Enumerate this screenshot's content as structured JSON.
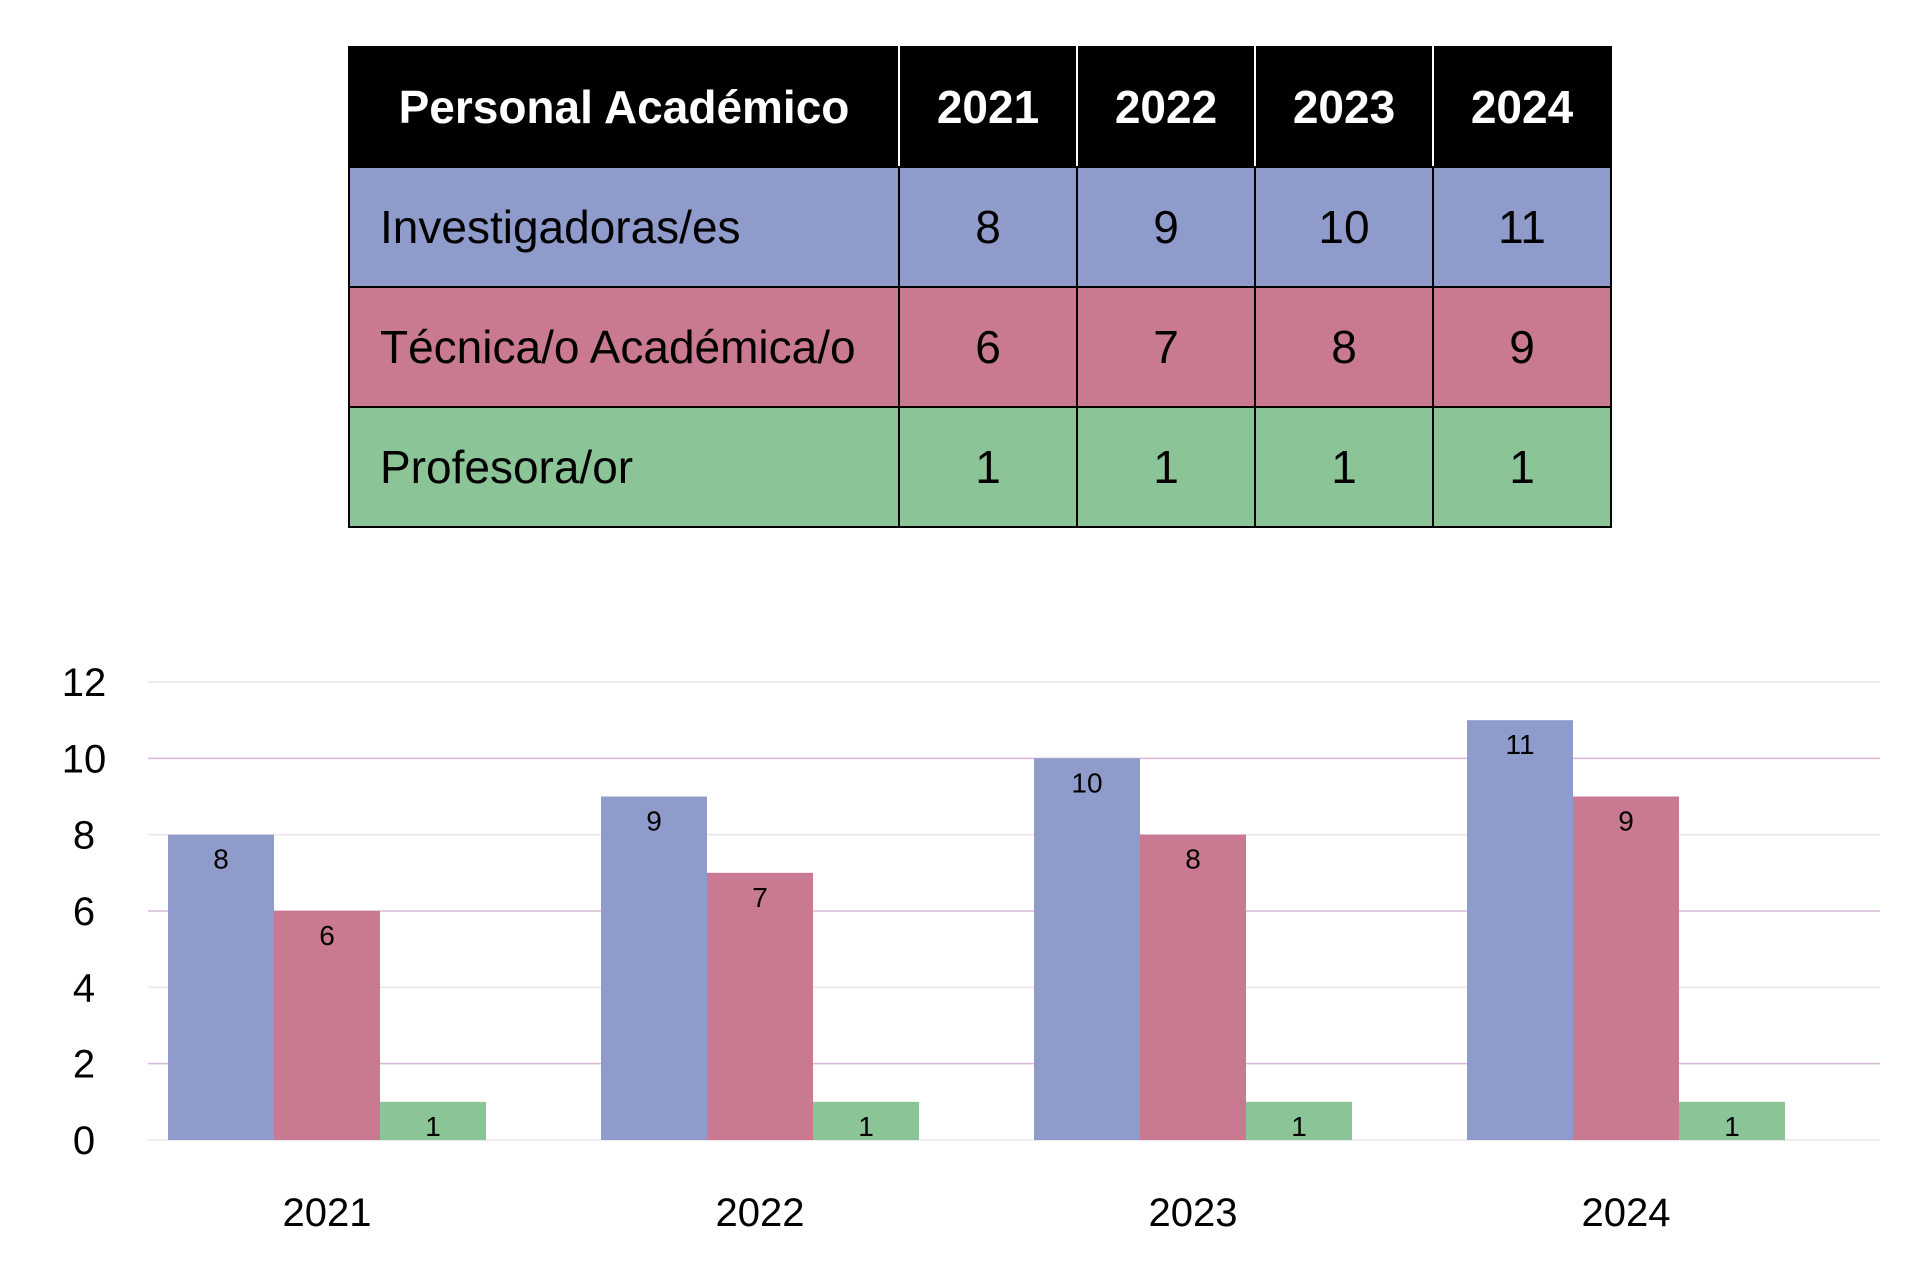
{
  "table": {
    "header": [
      "Personal Académico",
      "2021",
      "2022",
      "2023",
      "2024"
    ],
    "rows": [
      {
        "label": "Investigadoras/es",
        "values": [
          "8",
          "9",
          "10",
          "11"
        ],
        "color": "#8F9BCA"
      },
      {
        "label": "Técnica/o Académica/o",
        "values": [
          "6",
          "7",
          "8",
          "9"
        ],
        "color": "#C97A90"
      },
      {
        "label": "Profesora/or",
        "values": [
          "1",
          "1",
          "1",
          "1"
        ],
        "color": "#8BC496"
      }
    ]
  },
  "chart_data": {
    "type": "bar",
    "categories": [
      "2021",
      "2022",
      "2023",
      "2024"
    ],
    "series": [
      {
        "values": [
          8,
          9,
          10,
          11
        ],
        "color": "#8F9BCA"
      },
      {
        "values": [
          6,
          7,
          8,
          9
        ],
        "color": "#C97A90"
      },
      {
        "values": [
          1,
          1,
          1,
          1
        ],
        "color": "#8BC496"
      }
    ],
    "yticks": [
      "0",
      "2",
      "4",
      "6",
      "8",
      "10",
      "12"
    ],
    "ylim": [
      0,
      12
    ],
    "grid": true,
    "legend": "none",
    "data_labels": true
  }
}
